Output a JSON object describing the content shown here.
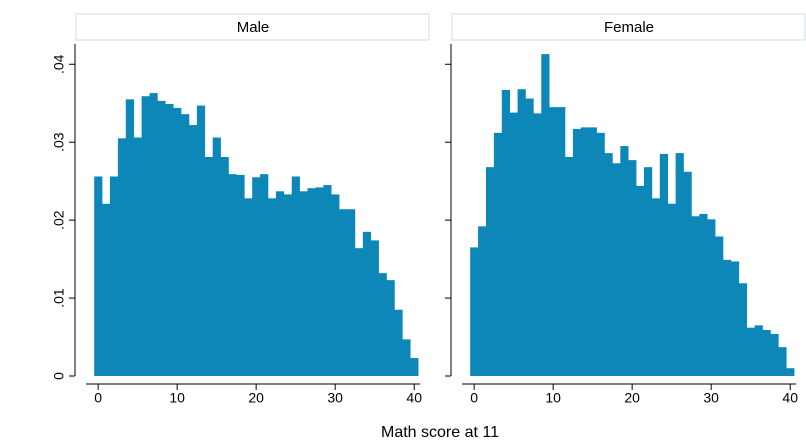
{
  "chart_data": {
    "type": "histogram",
    "xlabel": "Math score at 11",
    "color": "#0d87b8",
    "xlim": [
      -2.8,
      42
    ],
    "ylim": [
      0,
      0.0426
    ],
    "xticks": [
      0,
      10,
      20,
      30,
      40
    ],
    "yticks": [
      0,
      {
        "value": 0.01,
        "label": ".01"
      },
      {
        "value": 0.02,
        "label": ".02"
      },
      {
        "value": 0.03,
        "label": ".03"
      },
      {
        "value": 0.04,
        "label": ".04"
      }
    ],
    "bins": [
      -0.5,
      0.5,
      1.5,
      2.5,
      3.5,
      4.5,
      5.5,
      6.5,
      7.5,
      8.5,
      9.5,
      10.5,
      11.5,
      12.5,
      13.5,
      14.5,
      15.5,
      16.5,
      17.5,
      18.5,
      19.5,
      20.5,
      21.5,
      22.5,
      23.5,
      24.5,
      25.5,
      26.5,
      27.5,
      28.5,
      29.5,
      30.5,
      31.5,
      32.5,
      33.5,
      34.5,
      35.5,
      36.5,
      37.5,
      38.5,
      39.5,
      40.5
    ],
    "panels": [
      {
        "title": "Male",
        "values": [
          0.0256,
          0.0221,
          0.0256,
          0.0305,
          0.0355,
          0.0306,
          0.0359,
          0.0363,
          0.0353,
          0.0349,
          0.0344,
          0.0336,
          0.0322,
          0.0347,
          0.0281,
          0.0306,
          0.0281,
          0.0259,
          0.0258,
          0.0228,
          0.0255,
          0.0259,
          0.0228,
          0.0237,
          0.0233,
          0.0256,
          0.0237,
          0.0241,
          0.0242,
          0.0245,
          0.0233,
          0.0214,
          0.0214,
          0.0164,
          0.0185,
          0.0174,
          0.0132,
          0.0123,
          0.0085,
          0.0047,
          0.0023
        ]
      },
      {
        "title": "Female",
        "values": [
          0.0165,
          0.0192,
          0.0268,
          0.0312,
          0.0367,
          0.0338,
          0.0368,
          0.0356,
          0.0337,
          0.0413,
          0.0345,
          0.0345,
          0.0281,
          0.0317,
          0.0319,
          0.0319,
          0.0312,
          0.0286,
          0.0273,
          0.0295,
          0.0277,
          0.0244,
          0.0268,
          0.0228,
          0.0285,
          0.0221,
          0.0286,
          0.0262,
          0.0205,
          0.0208,
          0.0201,
          0.0179,
          0.0149,
          0.0147,
          0.0119,
          0.0062,
          0.0065,
          0.0059,
          0.0054,
          0.0037,
          0.001
        ]
      }
    ]
  }
}
